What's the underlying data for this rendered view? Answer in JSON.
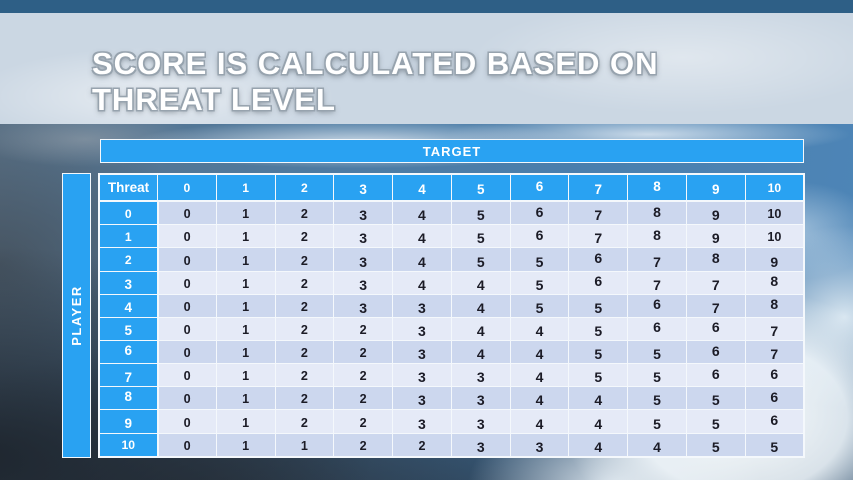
{
  "slide": {
    "title_line1": "SCORE IS CALCULATED BASED ON",
    "title_line2": "THREAT LEVEL"
  },
  "chart_data": {
    "type": "table",
    "title": "SCORE IS CALCULATED BASED ON THREAT LEVEL",
    "x_axis_label": "TARGET",
    "y_axis_label": "PLAYER",
    "corner_label": "Threat",
    "column_headers": [
      "0",
      "1",
      "2",
      "3",
      "4",
      "5",
      "6",
      "7",
      "8",
      "9",
      "10"
    ],
    "rows": [
      {
        "threat": "0",
        "values": [
          0,
          1,
          2,
          3,
          4,
          5,
          6,
          7,
          8,
          9,
          10
        ]
      },
      {
        "threat": "1",
        "values": [
          0,
          1,
          2,
          3,
          4,
          5,
          6,
          7,
          8,
          9,
          10
        ]
      },
      {
        "threat": "2",
        "values": [
          0,
          1,
          2,
          3,
          4,
          5,
          5,
          6,
          7,
          8,
          9
        ]
      },
      {
        "threat": "3",
        "values": [
          0,
          1,
          2,
          3,
          4,
          4,
          5,
          6,
          7,
          7,
          8
        ]
      },
      {
        "threat": "4",
        "values": [
          0,
          1,
          2,
          3,
          3,
          4,
          5,
          5,
          6,
          7,
          8
        ]
      },
      {
        "threat": "5",
        "values": [
          0,
          1,
          2,
          2,
          3,
          4,
          4,
          5,
          6,
          6,
          7
        ]
      },
      {
        "threat": "6",
        "values": [
          0,
          1,
          2,
          2,
          3,
          4,
          4,
          5,
          5,
          6,
          7
        ]
      },
      {
        "threat": "7",
        "values": [
          0,
          1,
          2,
          2,
          3,
          3,
          4,
          5,
          5,
          6,
          6
        ]
      },
      {
        "threat": "8",
        "values": [
          0,
          1,
          2,
          2,
          3,
          3,
          4,
          4,
          5,
          5,
          6
        ]
      },
      {
        "threat": "9",
        "values": [
          0,
          1,
          2,
          2,
          3,
          3,
          4,
          4,
          5,
          5,
          6
        ]
      },
      {
        "threat": "10",
        "values": [
          0,
          1,
          1,
          2,
          2,
          3,
          3,
          4,
          4,
          5,
          5
        ]
      }
    ]
  },
  "colors": {
    "accent-blue": "#29a2f2",
    "row-dark": "#ccd7ee",
    "row-light": "#e5eaf7",
    "grid-white": "#f4f8fc",
    "top-strip": "#2e5f86",
    "banner-bg": "#cbd7e3",
    "cell-text": "#1b1b26",
    "title-outline": "#97a3ae"
  }
}
